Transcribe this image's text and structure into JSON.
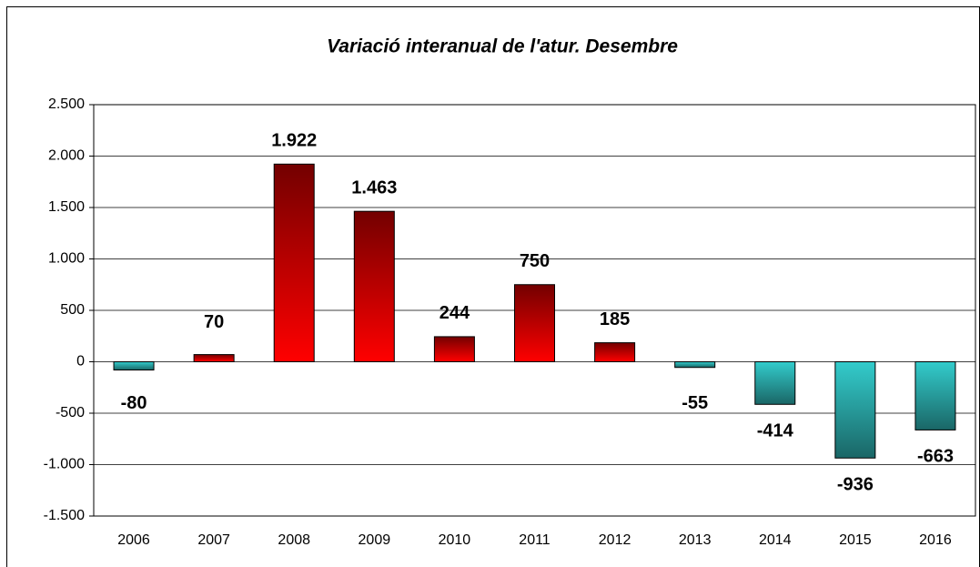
{
  "chart_data": {
    "type": "bar",
    "title": "Variació interanual de l'atur. Desembre",
    "categories": [
      "2006",
      "2007",
      "2008",
      "2009",
      "2010",
      "2011",
      "2012",
      "2013",
      "2014",
      "2015",
      "2016"
    ],
    "values": [
      -80,
      70,
      1922,
      1463,
      244,
      750,
      185,
      -55,
      -414,
      -936,
      -663
    ],
    "value_labels": [
      "-80",
      "70",
      "1.922",
      "1.463",
      "244",
      "750",
      "185",
      "-55",
      "-414",
      "-936",
      "-663"
    ],
    "color_positive": "#ff0000",
    "color_negative": "#33cccc",
    "label_color": "#1f8fa0",
    "ylim": [
      -1500,
      2500
    ],
    "yticks": [
      {
        "value": -1500,
        "label": "-1.500"
      },
      {
        "value": -1000,
        "label": "-1.000"
      },
      -500,
      0,
      500,
      {
        "value": 1000,
        "label": "1.000"
      },
      {
        "value": 1500,
        "label": "1.500"
      },
      {
        "value": 2000,
        "label": "2.000"
      },
      {
        "value": 2500,
        "label": "2.500"
      }
    ],
    "grid": true
  }
}
